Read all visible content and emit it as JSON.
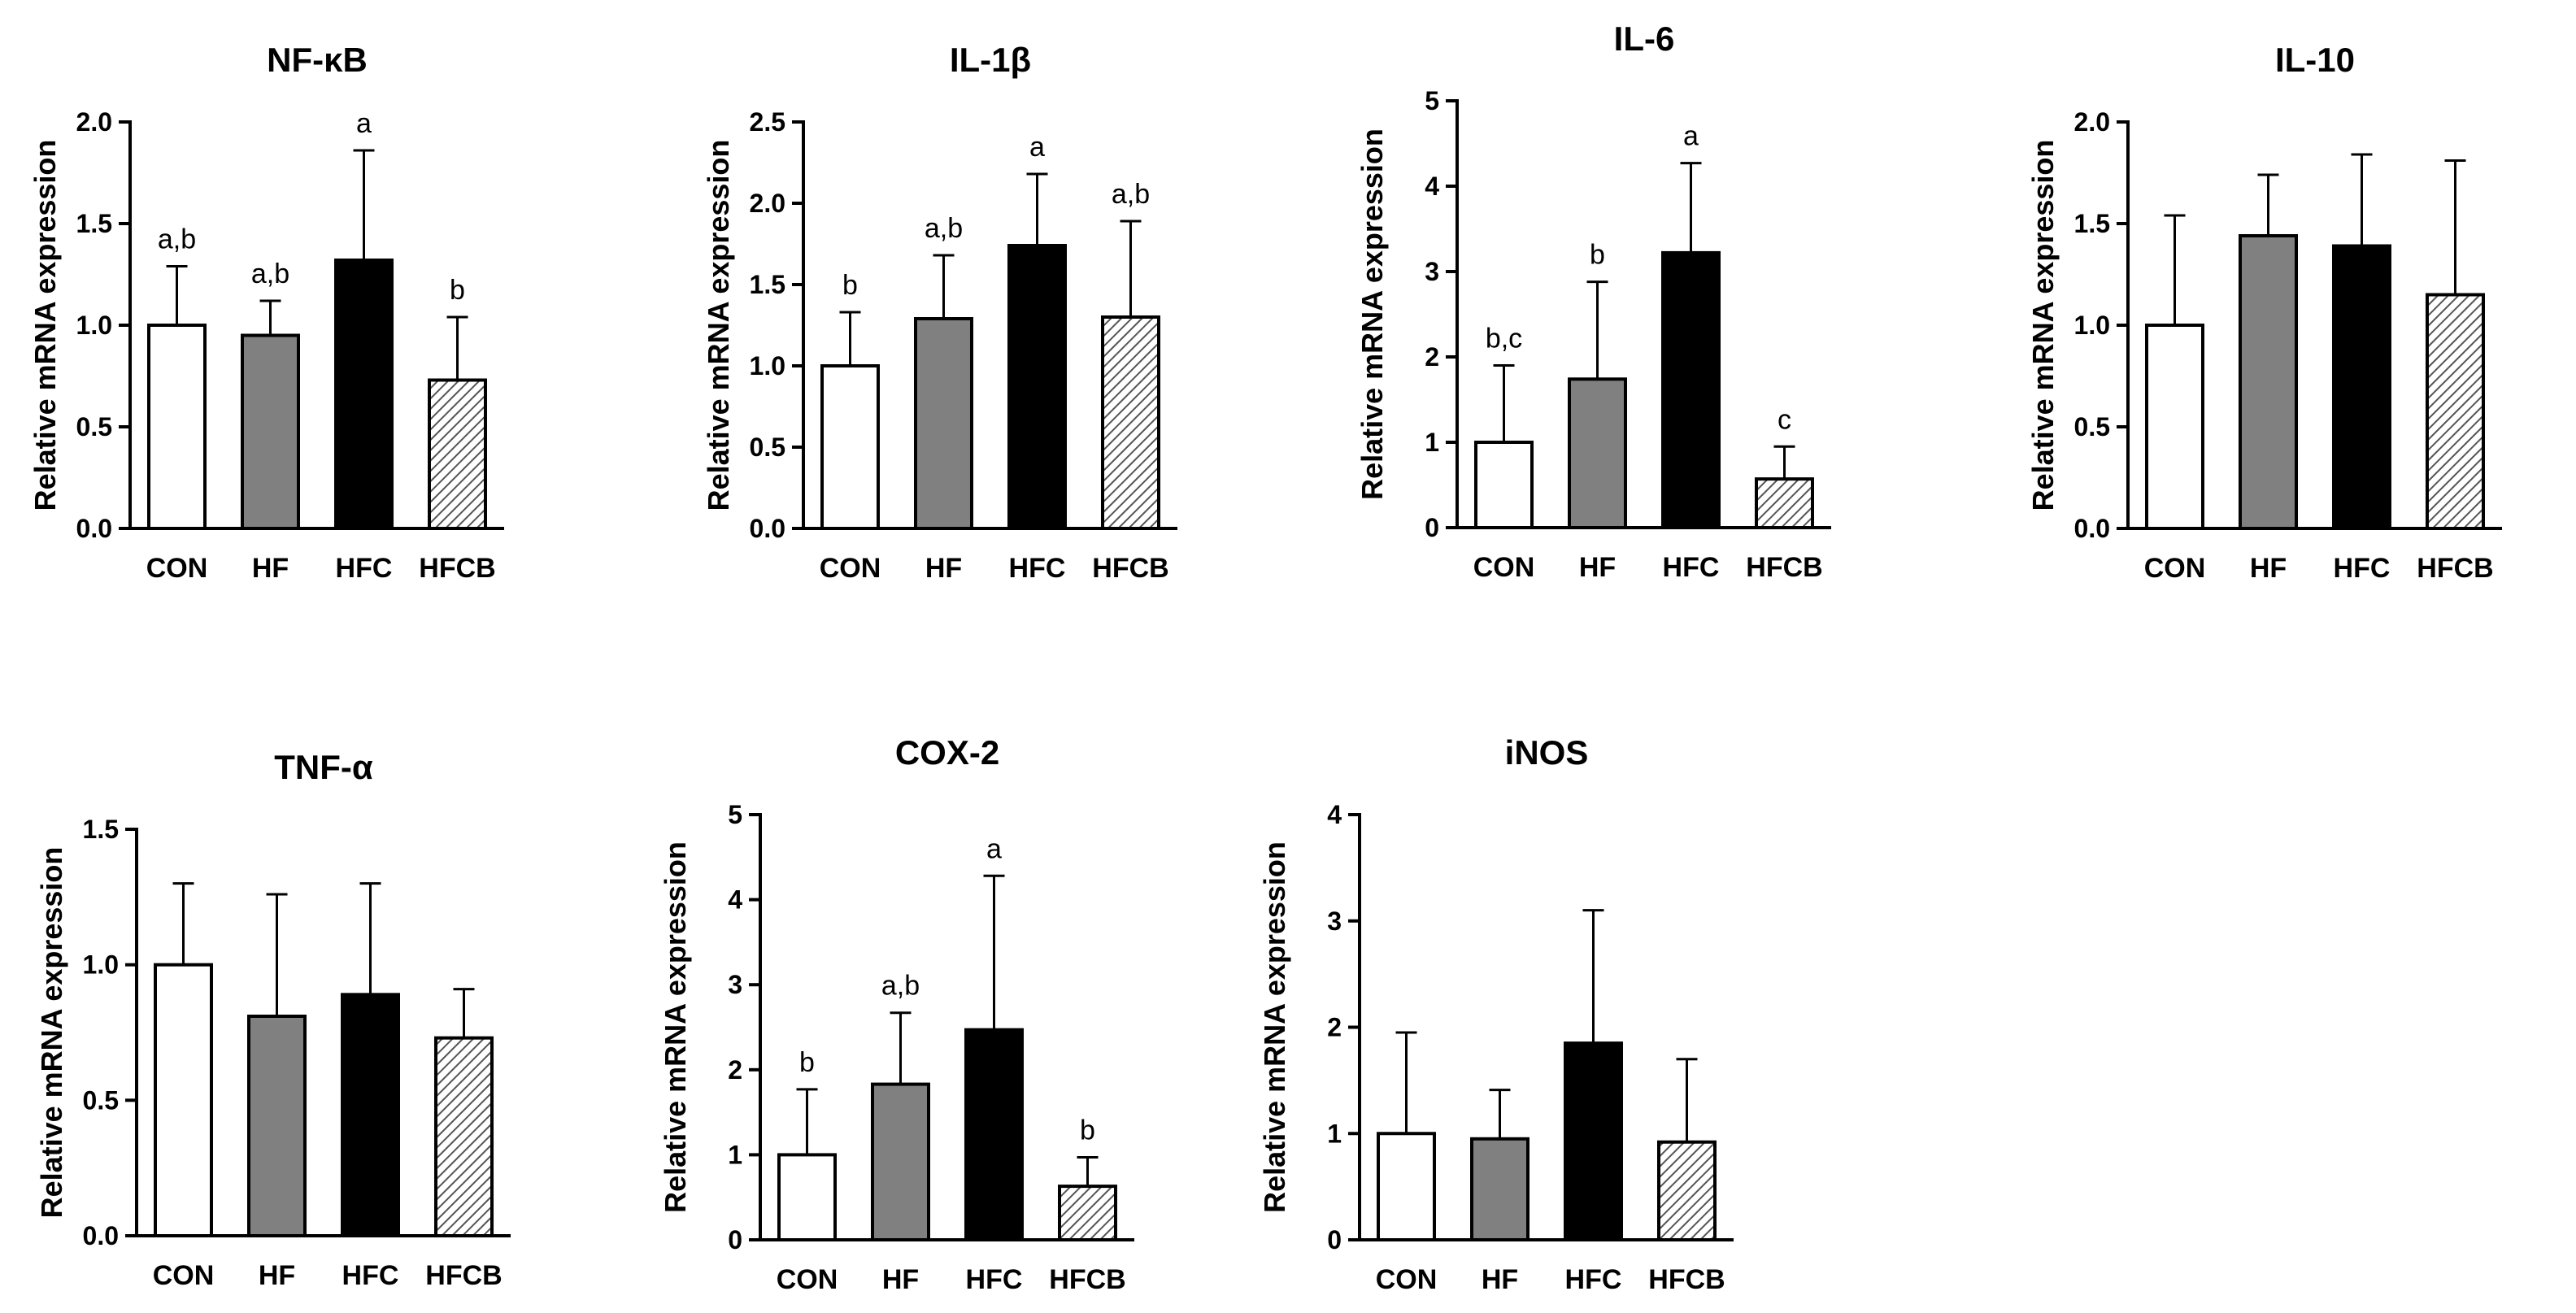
{
  "colors": {
    "CON": "#ffffff",
    "HF": "#808080",
    "HFC": "#000000",
    "HFCB": "hatch",
    "axis": "#000000"
  },
  "chart_data": [
    {
      "type": "bar",
      "title": "NF-κB",
      "ylabel": "Relative mRNA expression",
      "categories": [
        "CON",
        "HF",
        "HFC",
        "HFCB"
      ],
      "values": [
        1.0,
        0.95,
        1.32,
        0.73
      ],
      "errors": [
        0.29,
        0.17,
        0.54,
        0.31
      ],
      "significance": [
        "a,b",
        "a,b",
        "a",
        "b"
      ],
      "ylim": [
        0,
        2.0
      ],
      "yticks": [
        0,
        0.5,
        1.0,
        1.5,
        2.0
      ],
      "ytick_labels": [
        "0.0",
        "0.5",
        "1.0",
        "1.5",
        "2.0"
      ]
    },
    {
      "type": "bar",
      "title": "IL-1β",
      "ylabel": "Relative mRNA expression",
      "categories": [
        "CON",
        "HF",
        "HFC",
        "HFCB"
      ],
      "values": [
        1.0,
        1.29,
        1.74,
        1.3
      ],
      "errors": [
        0.33,
        0.39,
        0.44,
        0.59
      ],
      "significance": [
        "b",
        "a,b",
        "a",
        "a,b"
      ],
      "ylim": [
        0,
        2.5
      ],
      "yticks": [
        0,
        0.5,
        1.0,
        1.5,
        2.0,
        2.5
      ],
      "ytick_labels": [
        "0.0",
        "0.5",
        "1.0",
        "1.5",
        "2.0",
        "2.5"
      ]
    },
    {
      "type": "bar",
      "title": "IL-6",
      "ylabel": "Relative mRNA expression",
      "categories": [
        "CON",
        "HF",
        "HFC",
        "HFCB"
      ],
      "values": [
        1.0,
        1.74,
        3.22,
        0.57
      ],
      "errors": [
        0.9,
        1.14,
        1.05,
        0.38
      ],
      "significance": [
        "b,c",
        "b",
        "a",
        "c"
      ],
      "ylim": [
        0,
        5
      ],
      "yticks": [
        0,
        1,
        2,
        3,
        4,
        5
      ],
      "ytick_labels": [
        "0",
        "1",
        "2",
        "3",
        "4",
        "5"
      ]
    },
    {
      "type": "bar",
      "title": "IL-10",
      "ylabel": "Relative mRNA expression",
      "categories": [
        "CON",
        "HF",
        "HFC",
        "HFCB"
      ],
      "values": [
        1.0,
        1.44,
        1.39,
        1.15
      ],
      "errors": [
        0.54,
        0.3,
        0.45,
        0.66
      ],
      "significance": [
        "",
        "",
        "",
        ""
      ],
      "ylim": [
        0,
        2.0
      ],
      "yticks": [
        0,
        0.5,
        1.0,
        1.5,
        2.0
      ],
      "ytick_labels": [
        "0.0",
        "0.5",
        "1.0",
        "1.5",
        "2.0"
      ]
    },
    {
      "type": "bar",
      "title": "TNF-α",
      "ylabel": "Relative mRNA expression",
      "categories": [
        "CON",
        "HF",
        "HFC",
        "HFCB"
      ],
      "values": [
        1.0,
        0.81,
        0.89,
        0.73
      ],
      "errors": [
        0.3,
        0.45,
        0.41,
        0.18
      ],
      "significance": [
        "",
        "",
        "",
        ""
      ],
      "ylim": [
        0,
        1.5
      ],
      "yticks": [
        0,
        0.5,
        1.0,
        1.5
      ],
      "ytick_labels": [
        "0.0",
        "0.5",
        "1.0",
        "1.5"
      ]
    },
    {
      "type": "bar",
      "title": "COX-2",
      "ylabel": "Relative mRNA expression",
      "categories": [
        "CON",
        "HF",
        "HFC",
        "HFCB"
      ],
      "values": [
        1.0,
        1.83,
        2.47,
        0.63
      ],
      "errors": [
        0.77,
        0.84,
        1.81,
        0.34
      ],
      "significance": [
        "b",
        "a,b",
        "a",
        "b"
      ],
      "ylim": [
        0,
        5
      ],
      "yticks": [
        0,
        1,
        2,
        3,
        4,
        5
      ],
      "ytick_labels": [
        "0",
        "1",
        "2",
        "3",
        "4",
        "5"
      ]
    },
    {
      "type": "bar",
      "title": "iNOS",
      "ylabel": "Relative mRNA expression",
      "categories": [
        "CON",
        "HF",
        "HFC",
        "HFCB"
      ],
      "values": [
        1.0,
        0.95,
        1.85,
        0.92
      ],
      "errors": [
        0.95,
        0.46,
        1.25,
        0.78
      ],
      "significance": [
        "",
        "",
        "",
        ""
      ],
      "ylim": [
        0,
        4
      ],
      "yticks": [
        0,
        1,
        2,
        3,
        4
      ],
      "ytick_labels": [
        "0",
        "1",
        "2",
        "3",
        "4"
      ]
    }
  ]
}
